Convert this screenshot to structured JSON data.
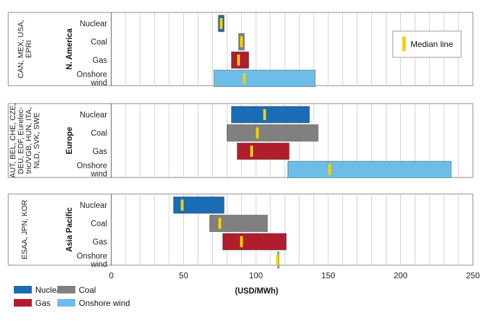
{
  "chart_data": {
    "type": "floating-bar",
    "xlabel": "(USD/MWh)",
    "xlim": [
      0,
      250
    ],
    "xticks": [
      0,
      50,
      100,
      150,
      200,
      250
    ],
    "grid_step": 10,
    "colors": {
      "Nuclear": "#1a6cb5",
      "Coal": "#808080",
      "Gas": "#b01e2d",
      "Onshore wind": "#6cbde8",
      "median": "#f5d000",
      "grid": "#c8c8c8",
      "frame": "#888888"
    },
    "legend_items": [
      "Nuclear",
      "Coal",
      "Gas",
      "Onshore wind"
    ],
    "median_legend_label": "Median line",
    "panels": [
      {
        "region": "N. America",
        "countries_lines": [
          "CAN, MEX, USA,",
          "EPRI"
        ],
        "bars": [
          {
            "tech": "Nuclear",
            "label": "Nuclear",
            "min": 74,
            "max": 78,
            "median": 76
          },
          {
            "tech": "Coal",
            "label": "Coal",
            "min": 88,
            "max": 92,
            "median": 90
          },
          {
            "tech": "Gas",
            "label": "Gas",
            "min": 83,
            "max": 95,
            "median": 88
          },
          {
            "tech": "Onshore wind",
            "label": "Onshore wind",
            "min": 71,
            "max": 141,
            "median": 92
          }
        ]
      },
      {
        "region": "Europe",
        "countries_lines": [
          "AUT, BEL, CHE, CZE,",
          "DEU, EDF, Eurelec-",
          "tric/VGB, HUN, ITA,",
          "NLD, SVK, SWE"
        ],
        "bars": [
          {
            "tech": "Nuclear",
            "label": "Nuclear",
            "min": 83,
            "max": 137,
            "median": 106
          },
          {
            "tech": "Coal",
            "label": "Coal",
            "min": 80,
            "max": 143,
            "median": 101
          },
          {
            "tech": "Gas",
            "label": "Gas",
            "min": 87,
            "max": 123,
            "median": 97
          },
          {
            "tech": "Onshore wind",
            "label": "Onshore wind",
            "min": 122,
            "max": 235,
            "median": 151
          }
        ]
      },
      {
        "region": "Asia Pacific",
        "countries_lines": [
          "ESAA, JPN, KOR"
        ],
        "bars": [
          {
            "tech": "Nuclear",
            "label": "Nuclear",
            "min": 43,
            "max": 78,
            "median": 49
          },
          {
            "tech": "Coal",
            "label": "Coal",
            "min": 68,
            "max": 108,
            "median": 75
          },
          {
            "tech": "Gas",
            "label": "Gas",
            "min": 77,
            "max": 121,
            "median": 90
          },
          {
            "tech": "Onshore wind",
            "label": "Onshore wind",
            "min": 115,
            "max": 116,
            "median": 115
          }
        ]
      }
    ]
  }
}
